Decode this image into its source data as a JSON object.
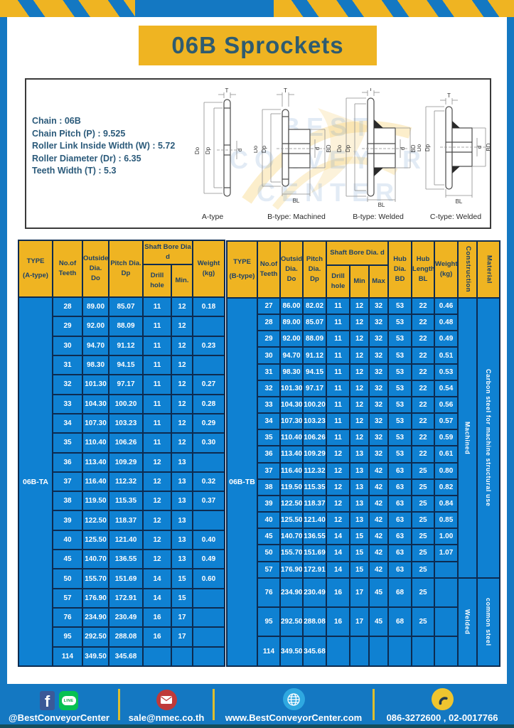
{
  "title": "06B Sprockets",
  "specs": [
    "Chain : 06B",
    "Chain Pitch (P) : 9.525",
    "Roller Link Inside Width (W) : 5.72",
    "Roller Diameter (Dr) : 6.35",
    "Teeth Width (T) : 5.3"
  ],
  "diagram_labels": [
    "A-type",
    "B-type: Machined",
    "B-type: Welded",
    "C-type: Welded"
  ],
  "dims": {
    "T": "T",
    "Do": "Do",
    "Dp": "Dp",
    "d": "d",
    "BD": "BD",
    "BL": "BL"
  },
  "watermark": [
    "BEST",
    "CONVEYOR",
    "CENTER"
  ],
  "table_a": {
    "headers": {
      "type": "TYPE\n(A-type)",
      "teeth": "No.of\nTeeth",
      "outside": "Outside\nDia.\nDo",
      "pitch": "Pitch Dia.\nDp",
      "shaft_bore": "Shaft Bore Dia d",
      "drill": "Drill hole",
      "min": "Min.",
      "weight": "Weight\n(kg)"
    },
    "type_value": "06B-TA",
    "rows": [
      [
        "28",
        "89.00",
        "85.07",
        "11",
        "12",
        "0.18"
      ],
      [
        "29",
        "92.00",
        "88.09",
        "11",
        "12",
        ""
      ],
      [
        "30",
        "94.70",
        "91.12",
        "11",
        "12",
        "0.23"
      ],
      [
        "31",
        "98.30",
        "94.15",
        "11",
        "12",
        ""
      ],
      [
        "32",
        "101.30",
        "97.17",
        "11",
        "12",
        "0.27"
      ],
      [
        "33",
        "104.30",
        "100.20",
        "11",
        "12",
        "0.28"
      ],
      [
        "34",
        "107.30",
        "103.23",
        "11",
        "12",
        "0.29"
      ],
      [
        "35",
        "110.40",
        "106.26",
        "11",
        "12",
        "0.30"
      ],
      [
        "36",
        "113.40",
        "109.29",
        "12",
        "13",
        ""
      ],
      [
        "37",
        "116.40",
        "112.32",
        "12",
        "13",
        "0.32"
      ],
      [
        "38",
        "119.50",
        "115.35",
        "12",
        "13",
        "0.37"
      ],
      [
        "39",
        "122.50",
        "118.37",
        "12",
        "13",
        ""
      ],
      [
        "40",
        "125.50",
        "121.40",
        "12",
        "13",
        "0.40"
      ],
      [
        "45",
        "140.70",
        "136.55",
        "12",
        "13",
        "0.49"
      ],
      [
        "50",
        "155.70",
        "151.69",
        "14",
        "15",
        "0.60"
      ],
      [
        "57",
        "176.90",
        "172.91",
        "14",
        "15",
        ""
      ],
      [
        "76",
        "234.90",
        "230.49",
        "16",
        "17",
        ""
      ],
      [
        "95",
        "292.50",
        "288.08",
        "16",
        "17",
        ""
      ],
      [
        "114",
        "349.50",
        "345.68",
        "",
        "",
        ""
      ]
    ]
  },
  "table_b": {
    "headers": {
      "type": "TYPE\n(B-type)",
      "teeth": "No.of\nTeeth",
      "outside": "Outside\nDia.\nDo",
      "pitch": "Pitch\nDia.\nDp",
      "shaft_bore": "Shaft Bore Dia. d",
      "drill": "Drill hole",
      "min": "Min",
      "max": "Max",
      "hub_dia": "Hub\nDia.\nBD",
      "hub_len": "Hub\nLength\nBL",
      "weight": "Weight\n(kg)",
      "construction": "Construction",
      "material": "Material"
    },
    "type_value": "06B-TB",
    "construction_groups": [
      {
        "label": "Machined",
        "span": 17
      },
      {
        "label": "Welded",
        "span": 3
      }
    ],
    "material_groups": [
      {
        "label": "Carbon steel for machine structural use",
        "span": 17
      },
      {
        "label": "common steel",
        "span": 3
      }
    ],
    "rows": [
      [
        "27",
        "86.00",
        "82.02",
        "11",
        "12",
        "32",
        "53",
        "22",
        "0.46"
      ],
      [
        "28",
        "89.00",
        "85.07",
        "11",
        "12",
        "32",
        "53",
        "22",
        "0.48"
      ],
      [
        "29",
        "92.00",
        "88.09",
        "11",
        "12",
        "32",
        "53",
        "22",
        "0.49"
      ],
      [
        "30",
        "94.70",
        "91.12",
        "11",
        "12",
        "32",
        "53",
        "22",
        "0.51"
      ],
      [
        "31",
        "98.30",
        "94.15",
        "11",
        "12",
        "32",
        "53",
        "22",
        "0.53"
      ],
      [
        "32",
        "101.30",
        "97.17",
        "11",
        "12",
        "32",
        "53",
        "22",
        "0.54"
      ],
      [
        "33",
        "104.30",
        "100.20",
        "11",
        "12",
        "32",
        "53",
        "22",
        "0.56"
      ],
      [
        "34",
        "107.30",
        "103.23",
        "11",
        "12",
        "32",
        "53",
        "22",
        "0.57"
      ],
      [
        "35",
        "110.40",
        "106.26",
        "11",
        "12",
        "32",
        "53",
        "22",
        "0.59"
      ],
      [
        "36",
        "113.40",
        "109.29",
        "12",
        "13",
        "32",
        "53",
        "22",
        "0.61"
      ],
      [
        "37",
        "116.40",
        "112.32",
        "12",
        "13",
        "42",
        "63",
        "25",
        "0.80"
      ],
      [
        "38",
        "119.50",
        "115.35",
        "12",
        "13",
        "42",
        "63",
        "25",
        "0.82"
      ],
      [
        "39",
        "122.50",
        "118.37",
        "12",
        "13",
        "42",
        "63",
        "25",
        "0.84"
      ],
      [
        "40",
        "125.50",
        "121.40",
        "12",
        "13",
        "42",
        "63",
        "25",
        "0.85"
      ],
      [
        "45",
        "140.70",
        "136.55",
        "14",
        "15",
        "42",
        "63",
        "25",
        "1.00"
      ],
      [
        "50",
        "155.70",
        "151.69",
        "14",
        "15",
        "42",
        "63",
        "25",
        "1.07"
      ],
      [
        "57",
        "176.90",
        "172.91",
        "14",
        "15",
        "42",
        "63",
        "25",
        ""
      ],
      [
        "76",
        "234.90",
        "230.49",
        "16",
        "17",
        "45",
        "68",
        "25",
        ""
      ],
      [
        "95",
        "292.50",
        "288.08",
        "16",
        "17",
        "45",
        "68",
        "25",
        ""
      ],
      [
        "114",
        "349.50",
        "345.68",
        "",
        "",
        "",
        "",
        "",
        ""
      ]
    ]
  },
  "footer": {
    "facebook_letter": "f",
    "line_label": "LINE",
    "social_handle": "@BestConveyorCenter",
    "email": "sale@nmec.co.th",
    "website": "www.BestConveyorCenter.com",
    "phones": "086-3272600 , 02-0017766"
  },
  "colors": {
    "frame_blue": "#1478c2",
    "cell_blue": "#0f81d2",
    "accent_yellow": "#efb422",
    "border_navy": "#0d2b50",
    "title_text": "#2e5b70",
    "facebook_blue": "#3b5998",
    "line_green": "#06c152",
    "email_red": "#bf3a3a",
    "globe_blue": "#2fa8e0",
    "phone_yellow": "#eec52f"
  }
}
